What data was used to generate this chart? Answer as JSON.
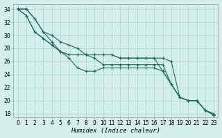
{
  "xlabel": "Humidex (Indice chaleur)",
  "ylabel": "",
  "bg_color": "#d4eeec",
  "grid_color": "#b0d8d4",
  "line_color": "#1a6b5a",
  "xlim": [
    -0.5,
    23.5
  ],
  "ylim": [
    17.5,
    34.8
  ],
  "yticks": [
    18,
    20,
    22,
    24,
    26,
    28,
    30,
    32,
    34
  ],
  "xticks": [
    0,
    1,
    2,
    3,
    4,
    5,
    6,
    7,
    8,
    9,
    10,
    11,
    12,
    13,
    14,
    15,
    16,
    17,
    18,
    19,
    20,
    21,
    22,
    23
  ],
  "series": [
    [
      34,
      34,
      32.5,
      30.5,
      29,
      27.5,
      26.5,
      25,
      24.5,
      24.5,
      25,
      25,
      25,
      25,
      25,
      25,
      25,
      24.5,
      22.5,
      20.5,
      20,
      20,
      18.5,
      18
    ],
    [
      34,
      34,
      32.5,
      30.5,
      30,
      29,
      28.5,
      28,
      27,
      26.5,
      25.5,
      25.5,
      25.5,
      25.5,
      25.5,
      25.5,
      25.5,
      25.5,
      22.5,
      20.5,
      20,
      20,
      18.5,
      17.8
    ],
    [
      34,
      33,
      30.5,
      29.5,
      28.5,
      27.5,
      27,
      27,
      27,
      27,
      27,
      27,
      26.5,
      26.5,
      26.5,
      26.5,
      26.5,
      24.5,
      22.5,
      20.5,
      20,
      20,
      18.5,
      17.8
    ],
    [
      34,
      33,
      30.5,
      29.5,
      28.5,
      27.5,
      27,
      27,
      27,
      27,
      27,
      27,
      26.5,
      26.5,
      26.5,
      26.5,
      26.5,
      26.5,
      26,
      20.5,
      20,
      20,
      18.5,
      17.8
    ]
  ]
}
